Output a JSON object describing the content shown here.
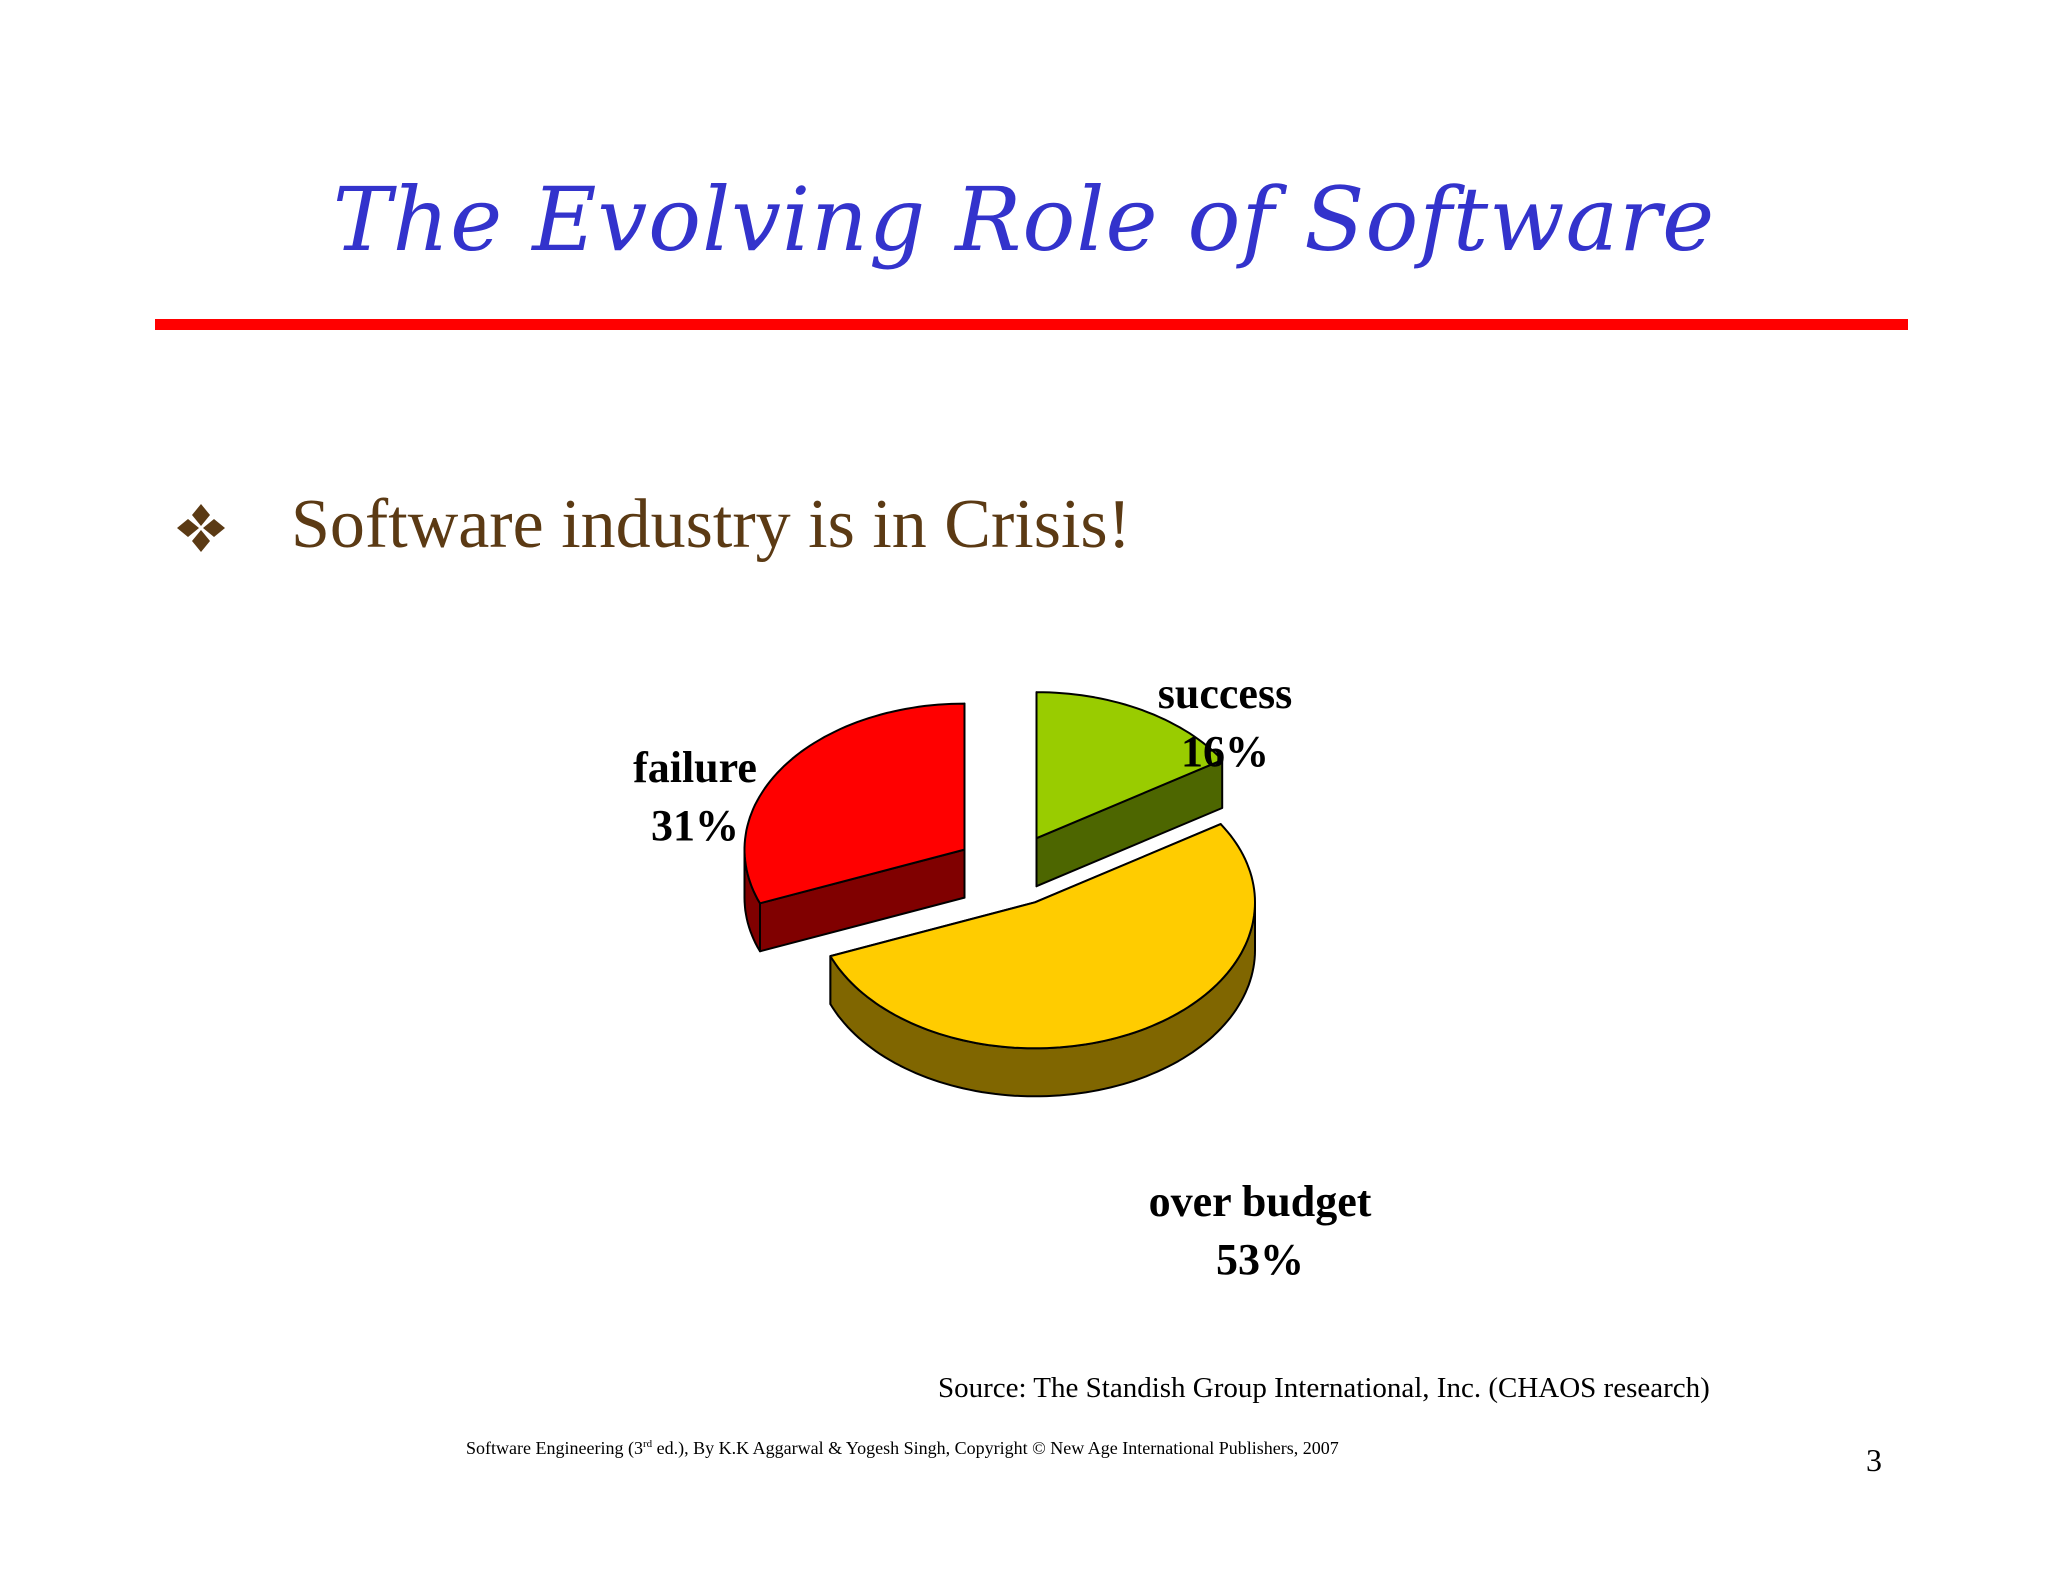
{
  "slide": {
    "title": "The Evolving Role of Software",
    "bullet_text": "Software industry is in Crisis!",
    "bullet_icon": "four-diamond-bullet-icon",
    "source": "Source: The Standish Group International, Inc. (CHAOS research)",
    "footer_pre": "Software Engineering (3",
    "footer_sup": "rd",
    "footer_post": " ed.), By K.K Aggarwal & Yogesh Singh, Copyright © New Age International Publishers, 2007",
    "page_number": "3"
  },
  "colors": {
    "title": "#3333CC",
    "rule": "#FF0000",
    "bullet": "#5B3A14"
  },
  "chart_data": {
    "type": "pie",
    "style": "3d-exploded",
    "slices": [
      {
        "label": "success",
        "value": 16,
        "value_label": "16%",
        "top_color": "#99CC00",
        "side_color": "#4D6600"
      },
      {
        "label": "over budget",
        "value": 53,
        "value_label": "53%",
        "top_color": "#FFCC00",
        "side_color": "#806600"
      },
      {
        "label": "failure",
        "value": 31,
        "value_label": "31%",
        "top_color": "#FF0000",
        "side_color": "#800000"
      }
    ]
  }
}
